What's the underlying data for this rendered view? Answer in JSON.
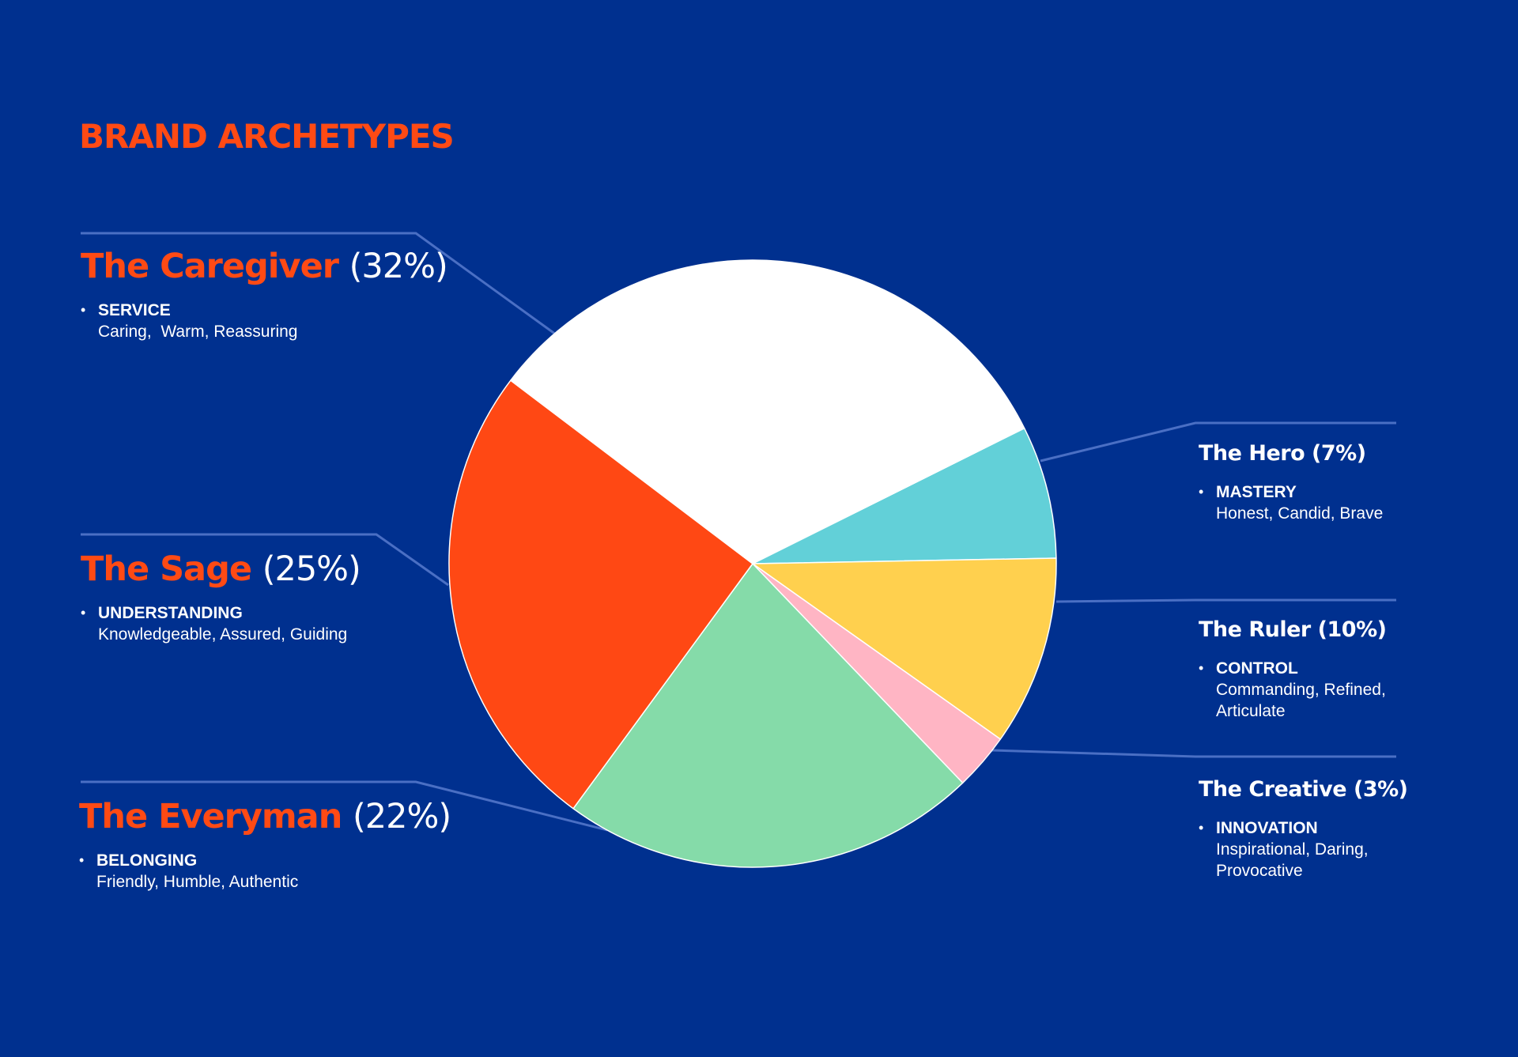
{
  "title": "BRAND ARCHETYPES",
  "colors": {
    "background": "#00308f",
    "accent": "#ff4a14",
    "leader_line": "#4a6fc4",
    "text": "#ffffff"
  },
  "chart_data": {
    "type": "pie",
    "title": "BRAND ARCHETYPES",
    "start": "about 2 o'clock, clockwise",
    "slices": [
      {
        "label": "The Hero",
        "percent": "(7%)",
        "value": 7,
        "color": "#62d0d8",
        "trait": "MASTERY",
        "description": "Honest, Candid, Brave"
      },
      {
        "label": "The Ruler",
        "percent": "(10%)",
        "value": 10,
        "color": "#ffd04e",
        "trait": "CONTROL",
        "description": "Commanding, Refined, Articulate"
      },
      {
        "label": "The Creative",
        "percent": "(3%)",
        "value": 3,
        "color": "#ffb5c4",
        "trait": "INNOVATION",
        "description": "Inspirational, Daring, Provocative"
      },
      {
        "label": "The Everyman",
        "percent": "(22%)",
        "value": 22,
        "color": "#85dba9",
        "trait": "BELONGING",
        "description": "Friendly, Humble, Authentic"
      },
      {
        "label": "The Sage",
        "percent": "(25%)",
        "value": 25,
        "color": "#ff4814",
        "trait": "UNDERSTANDING",
        "description": "Knowledgeable, Assured, Guiding"
      },
      {
        "label": "The Caregiver",
        "percent": "(32%)",
        "value": 32,
        "color": "#ffffff",
        "trait": "SERVICE",
        "description": "Caring,  Warm, Reassuring"
      }
    ]
  }
}
